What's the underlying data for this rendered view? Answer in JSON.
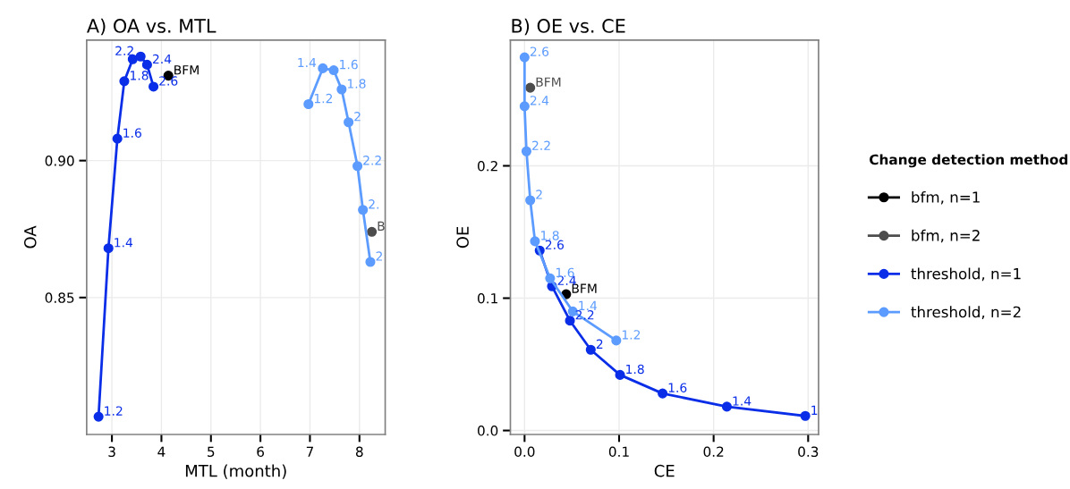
{
  "chart_data": [
    {
      "type": "line",
      "title": "A) OA vs. MTL",
      "xlabel": "MTL (month)",
      "ylabel": "OA",
      "xlim": [
        2.49,
        8.52
      ],
      "ylim": [
        0.8,
        0.944
      ],
      "xticks": [
        3,
        4,
        5,
        6,
        7,
        8
      ],
      "yticks": [
        {
          "value": 0.85,
          "label": "0.85"
        },
        {
          "value": 0.9,
          "label": "0.90"
        }
      ],
      "grid": true,
      "marker": "circle",
      "line_style": "solid",
      "series": [
        {
          "color": "#000000",
          "x": [
            4.14
          ],
          "values": [
            0.931
          ]
        },
        {
          "color": "#4d4d4d",
          "x": [
            8.25
          ],
          "values": [
            0.874
          ]
        },
        {
          "color": "#0a2ee8",
          "x": [
            2.73,
            2.93,
            3.11,
            3.25,
            3.42,
            3.58,
            3.71,
            3.84
          ],
          "values": [
            0.8065,
            0.868,
            0.908,
            0.929,
            0.937,
            0.938,
            0.935,
            0.927
          ]
        },
        {
          "color": "#5c9bff",
          "x": [
            6.97,
            7.26,
            7.48,
            7.64,
            7.78,
            7.96,
            8.07,
            8.22
          ],
          "values": [
            0.9206,
            0.9337,
            0.933,
            0.926,
            0.914,
            0.898,
            0.882,
            0.863
          ]
        }
      ],
      "annotations": [
        {
          "text": "BFM",
          "x": 4.14,
          "y": 0.931
        },
        {
          "text": "B",
          "x": 8.25,
          "y": 0.874
        },
        {
          "text": "1.2",
          "x": 2.73,
          "y": 0.8065
        },
        {
          "text": "1.4",
          "x": 2.93,
          "y": 0.868
        },
        {
          "text": "1.6",
          "x": 3.11,
          "y": 0.908
        },
        {
          "text": "1.8",
          "x": 3.25,
          "y": 0.929
        },
        {
          "text": "2.2",
          "x": 3.58,
          "y": 0.938
        },
        {
          "text": "2.4",
          "x": 3.71,
          "y": 0.935
        },
        {
          "text": "2.6",
          "x": 3.84,
          "y": 0.927
        },
        {
          "text": "1.2",
          "x": 6.97,
          "y": 0.9206
        },
        {
          "text": "1.4",
          "x": 7.26,
          "y": 0.9337
        },
        {
          "text": "1.6",
          "x": 7.48,
          "y": 0.933
        },
        {
          "text": "1.8",
          "x": 7.64,
          "y": 0.926
        },
        {
          "text": "2",
          "x": 7.78,
          "y": 0.914
        },
        {
          "text": "2.2",
          "x": 7.96,
          "y": 0.898
        },
        {
          "text": "2.",
          "x": 8.07,
          "y": 0.882
        },
        {
          "text": "2",
          "x": 8.22,
          "y": 0.863
        }
      ]
    },
    {
      "type": "line",
      "title": "B) OE vs. CE",
      "xlabel": "CE",
      "ylabel": "OE",
      "xlim": [
        -0.015,
        0.311
      ],
      "ylim": [
        -0.003,
        0.295
      ],
      "xticks": [
        {
          "value": 0,
          "label": "0.0"
        },
        0.1,
        0.2,
        0.3
      ],
      "yticks": [
        {
          "value": 0,
          "label": "0.0"
        },
        0.1,
        0.2
      ],
      "grid": true,
      "marker": "circle",
      "line_style": "solid",
      "legend": "right",
      "legend_title": "Change detection method",
      "series": [
        {
          "name": "bfm, n=1",
          "color": "#000000",
          "x": [
            0.044
          ],
          "values": [
            0.103
          ]
        },
        {
          "name": "bfm, n=2",
          "color": "#4d4d4d",
          "x": [
            0.006
          ],
          "values": [
            0.259
          ]
        },
        {
          "name": "threshold, n=1",
          "color": "#0a2ee8",
          "x": [
            0.297,
            0.214,
            0.146,
            0.101,
            0.07,
            0.048,
            0.029,
            0.016
          ],
          "values": [
            0.011,
            0.018,
            0.028,
            0.042,
            0.061,
            0.083,
            0.109,
            0.136
          ]
        },
        {
          "name": "threshold, n=2",
          "color": "#5c9bff",
          "x": [
            0.097,
            0.051,
            0.027,
            0.011,
            0.006,
            0.002,
            0.0,
            0.0
          ],
          "values": [
            0.068,
            0.09,
            0.115,
            0.143,
            0.174,
            0.211,
            0.245,
            0.282
          ]
        }
      ],
      "annotations": [
        {
          "text": "BFM",
          "x": 0.044,
          "y": 0.103
        },
        {
          "text": "BFM",
          "x": 0.006,
          "y": 0.259
        },
        {
          "text": "1",
          "x": 0.297,
          "y": 0.011
        },
        {
          "text": "1.4",
          "x": 0.214,
          "y": 0.018
        },
        {
          "text": "1.6",
          "x": 0.146,
          "y": 0.028
        },
        {
          "text": "1.8",
          "x": 0.101,
          "y": 0.042
        },
        {
          "text": "2",
          "x": 0.07,
          "y": 0.061
        },
        {
          "text": "2.2",
          "x": 0.048,
          "y": 0.083
        },
        {
          "text": "2.4",
          "x": 0.029,
          "y": 0.109
        },
        {
          "text": "2.6",
          "x": 0.016,
          "y": 0.136
        },
        {
          "text": "1.2",
          "x": 0.097,
          "y": 0.068
        },
        {
          "text": "1.4",
          "x": 0.051,
          "y": 0.09
        },
        {
          "text": "1.6",
          "x": 0.027,
          "y": 0.115
        },
        {
          "text": "1.8",
          "x": 0.011,
          "y": 0.143
        },
        {
          "text": "2",
          "x": 0.006,
          "y": 0.174
        },
        {
          "text": "2.2",
          "x": 0.002,
          "y": 0.211
        },
        {
          "text": "2.4",
          "x": 0.0,
          "y": 0.245
        },
        {
          "text": "2.6",
          "x": 0.0,
          "y": 0.282
        }
      ]
    }
  ]
}
